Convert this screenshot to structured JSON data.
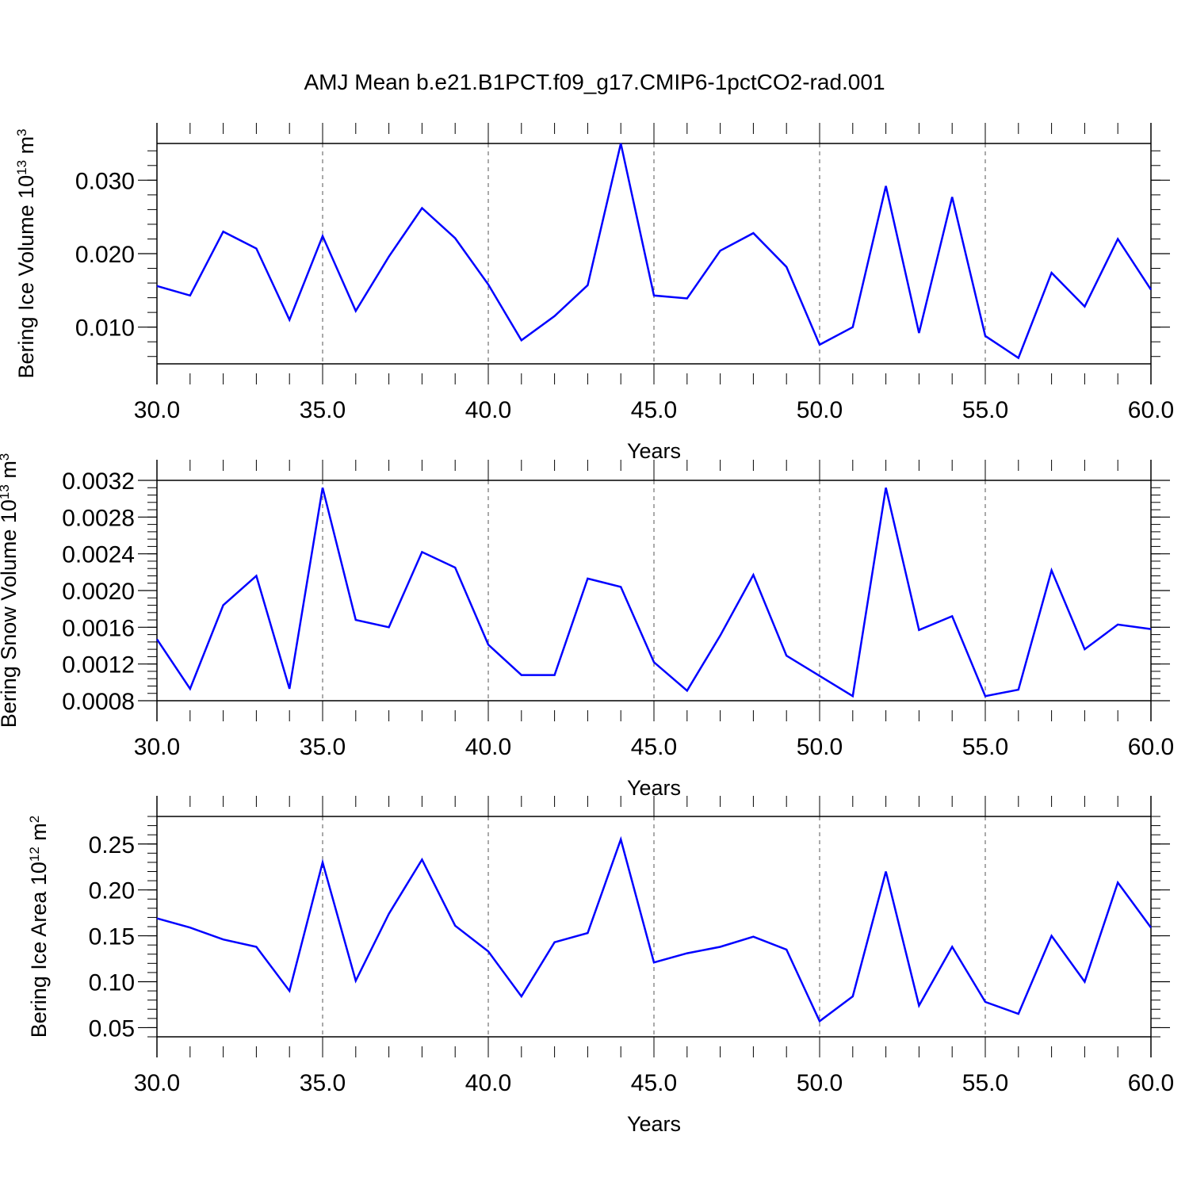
{
  "title": "AMJ Mean b.e21.B1PCT.f09_g17.CMIP6-1pctCO2-rad.001",
  "colors": {
    "line": "#0000ff",
    "axis": "#000000",
    "grid": "#555555"
  },
  "chart_data": [
    {
      "type": "line",
      "xlabel": "Years",
      "ylabel_main": "Bering Ice Volume 10",
      "ylabel_exp": "13",
      "ylabel_unit": " m",
      "ylabel_unit_exp": "3",
      "xlim": [
        30,
        60
      ],
      "ylim": [
        0.005,
        0.035
      ],
      "xticks": [
        30,
        35,
        40,
        45,
        50,
        55,
        60
      ],
      "xtick_labels": [
        "30.0",
        "35.0",
        "40.0",
        "45.0",
        "50.0",
        "55.0",
        "60.0"
      ],
      "yticks": [
        0.01,
        0.02,
        0.03
      ],
      "ytick_labels": [
        "0.010",
        "0.020",
        "0.030"
      ],
      "grid": "vertical dashed",
      "x": [
        30,
        31,
        32,
        33,
        34,
        35,
        36,
        37,
        38,
        39,
        40,
        41,
        42,
        43,
        44,
        45,
        46,
        47,
        48,
        49,
        50,
        51,
        52,
        53,
        54,
        55,
        56,
        57,
        58,
        59,
        60
      ],
      "y": [
        0.0156,
        0.0143,
        0.023,
        0.0207,
        0.011,
        0.0224,
        0.0122,
        0.0196,
        0.0262,
        0.0221,
        0.0158,
        0.0082,
        0.0115,
        0.0157,
        0.035,
        0.0143,
        0.0139,
        0.0204,
        0.0228,
        0.0182,
        0.0076,
        0.01,
        0.0292,
        0.0092,
        0.0277,
        0.0088,
        0.0058,
        0.0174,
        0.0128,
        0.022,
        0.0151
      ]
    },
    {
      "type": "line",
      "xlabel": "Years",
      "ylabel_main": "Bering Snow Volume 10",
      "ylabel_exp": "13",
      "ylabel_unit": " m",
      "ylabel_unit_exp": "3",
      "xlim": [
        30,
        60
      ],
      "ylim": [
        0.0008,
        0.0032
      ],
      "xticks": [
        30,
        35,
        40,
        45,
        50,
        55,
        60
      ],
      "xtick_labels": [
        "30.0",
        "35.0",
        "40.0",
        "45.0",
        "50.0",
        "55.0",
        "60.0"
      ],
      "yticks": [
        0.0008,
        0.0012,
        0.0016,
        0.002,
        0.0024,
        0.0028,
        0.0032
      ],
      "ytick_labels": [
        "0.0008",
        "0.0012",
        "0.0016",
        "0.0020",
        "0.0024",
        "0.0028",
        "0.0032"
      ],
      "grid": "vertical dashed",
      "x": [
        30,
        31,
        32,
        33,
        34,
        35,
        36,
        37,
        38,
        39,
        40,
        41,
        42,
        43,
        44,
        45,
        46,
        47,
        48,
        49,
        50,
        51,
        52,
        53,
        54,
        55,
        56,
        57,
        58,
        59,
        60
      ],
      "y": [
        0.00147,
        0.00093,
        0.00184,
        0.00216,
        0.00093,
        0.00312,
        0.00168,
        0.0016,
        0.00242,
        0.00225,
        0.00141,
        0.00108,
        0.00108,
        0.00213,
        0.00204,
        0.00122,
        0.00091,
        0.00151,
        0.00217,
        0.00129,
        0.00107,
        0.00085,
        0.00312,
        0.00157,
        0.00172,
        0.00085,
        0.00092,
        0.00222,
        0.00136,
        0.00163,
        0.00158
      ]
    },
    {
      "type": "line",
      "xlabel": "Years",
      "ylabel_main": "Bering Ice Area 10",
      "ylabel_exp": "12",
      "ylabel_unit": " m",
      "ylabel_unit_exp": "2",
      "xlim": [
        30,
        60
      ],
      "ylim": [
        0.04,
        0.28
      ],
      "xticks": [
        30,
        35,
        40,
        45,
        50,
        55,
        60
      ],
      "xtick_labels": [
        "30.0",
        "35.0",
        "40.0",
        "45.0",
        "50.0",
        "55.0",
        "60.0"
      ],
      "yticks": [
        0.05,
        0.1,
        0.15,
        0.2,
        0.25
      ],
      "ytick_labels": [
        "0.05",
        "0.10",
        "0.15",
        "0.20",
        "0.25"
      ],
      "grid": "vertical dashed",
      "x": [
        30,
        31,
        32,
        33,
        34,
        35,
        36,
        37,
        38,
        39,
        40,
        41,
        42,
        43,
        44,
        45,
        46,
        47,
        48,
        49,
        50,
        51,
        52,
        53,
        54,
        55,
        56,
        57,
        58,
        59,
        60
      ],
      "y": [
        0.169,
        0.159,
        0.146,
        0.138,
        0.09,
        0.23,
        0.101,
        0.174,
        0.233,
        0.161,
        0.133,
        0.084,
        0.143,
        0.153,
        0.255,
        0.121,
        0.131,
        0.138,
        0.149,
        0.135,
        0.057,
        0.084,
        0.22,
        0.074,
        0.138,
        0.078,
        0.065,
        0.15,
        0.1,
        0.208,
        0.159
      ]
    }
  ]
}
